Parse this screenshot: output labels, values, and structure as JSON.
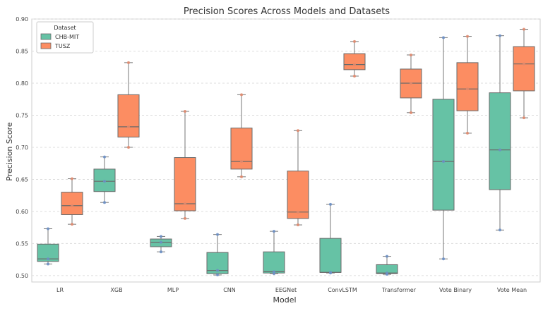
{
  "chart_data": {
    "type": "box",
    "title": "Precision Scores Across Models and Datasets",
    "xlabel": "Model",
    "ylabel": "Precision Score",
    "ylim": [
      0.49,
      0.9
    ],
    "yticks": [
      "0.50",
      "0.55",
      "0.60",
      "0.65",
      "0.70",
      "0.75",
      "0.80",
      "0.85",
      "0.90"
    ],
    "categories": [
      "LR",
      "XGB",
      "MLP",
      "CNN",
      "EEGNet",
      "ConvLSTM",
      "Transformer",
      "Vote Binary",
      "Vote Mean"
    ],
    "grid": "horizontal dashed",
    "legend": {
      "title": "Dataset",
      "position": "top-left"
    },
    "series": [
      {
        "name": "CHB-MIT",
        "color": "#66c2a5",
        "point_color": "#6b8fc4",
        "boxes": [
          {
            "min": 0.518,
            "q1": 0.522,
            "median": 0.526,
            "q3": 0.549,
            "max": 0.573
          },
          {
            "min": 0.614,
            "q1": 0.631,
            "median": 0.647,
            "q3": 0.666,
            "max": 0.685
          },
          {
            "min": 0.537,
            "q1": 0.545,
            "median": 0.552,
            "q3": 0.557,
            "max": 0.561
          },
          {
            "min": 0.501,
            "q1": 0.503,
            "median": 0.508,
            "q3": 0.536,
            "max": 0.564
          },
          {
            "min": 0.503,
            "q1": 0.504,
            "median": 0.506,
            "q3": 0.537,
            "max": 0.569
          },
          {
            "min": 0.504,
            "q1": 0.505,
            "median": 0.505,
            "q3": 0.558,
            "max": 0.611
          },
          {
            "min": 0.502,
            "q1": 0.503,
            "median": 0.504,
            "q3": 0.517,
            "max": 0.53
          },
          {
            "min": 0.526,
            "q1": 0.602,
            "median": 0.678,
            "q3": 0.775,
            "max": 0.871
          },
          {
            "min": 0.571,
            "q1": 0.634,
            "median": 0.696,
            "q3": 0.785,
            "max": 0.874
          }
        ],
        "points": [
          [
            0.518,
            0.526,
            0.573
          ],
          [
            0.614,
            0.647,
            0.685
          ],
          [
            0.537,
            0.552,
            0.561
          ],
          [
            0.501,
            0.508,
            0.564
          ],
          [
            0.503,
            0.506,
            0.569
          ],
          [
            0.504,
            0.505,
            0.611
          ],
          [
            0.502,
            0.504,
            0.53
          ],
          [
            0.526,
            0.678,
            0.871
          ],
          [
            0.571,
            0.696,
            0.874
          ]
        ]
      },
      {
        "name": "TUSZ",
        "color": "#fc8d62",
        "point_color": "#e08a6e",
        "boxes": [
          {
            "min": 0.58,
            "q1": 0.595,
            "median": 0.609,
            "q3": 0.63,
            "max": 0.651
          },
          {
            "min": 0.7,
            "q1": 0.716,
            "median": 0.732,
            "q3": 0.782,
            "max": 0.832
          },
          {
            "min": 0.589,
            "q1": 0.601,
            "median": 0.612,
            "q3": 0.684,
            "max": 0.756
          },
          {
            "min": 0.654,
            "q1": 0.666,
            "median": 0.678,
            "q3": 0.73,
            "max": 0.782
          },
          {
            "min": 0.579,
            "q1": 0.589,
            "median": 0.599,
            "q3": 0.663,
            "max": 0.726
          },
          {
            "min": 0.811,
            "q1": 0.821,
            "median": 0.829,
            "q3": 0.846,
            "max": 0.865
          },
          {
            "min": 0.754,
            "q1": 0.777,
            "median": 0.8,
            "q3": 0.822,
            "max": 0.844
          },
          {
            "min": 0.722,
            "q1": 0.757,
            "median": 0.791,
            "q3": 0.832,
            "max": 0.873
          },
          {
            "min": 0.746,
            "q1": 0.788,
            "median": 0.83,
            "q3": 0.857,
            "max": 0.884
          }
        ],
        "points": [
          [
            0.58,
            0.609,
            0.651
          ],
          [
            0.7,
            0.732,
            0.832
          ],
          [
            0.589,
            0.612,
            0.756
          ],
          [
            0.654,
            0.678,
            0.782
          ],
          [
            0.579,
            0.599,
            0.726
          ],
          [
            0.811,
            0.829,
            0.865
          ],
          [
            0.754,
            0.8,
            0.844
          ],
          [
            0.722,
            0.791,
            0.873
          ],
          [
            0.746,
            0.83,
            0.884
          ]
        ]
      }
    ]
  }
}
